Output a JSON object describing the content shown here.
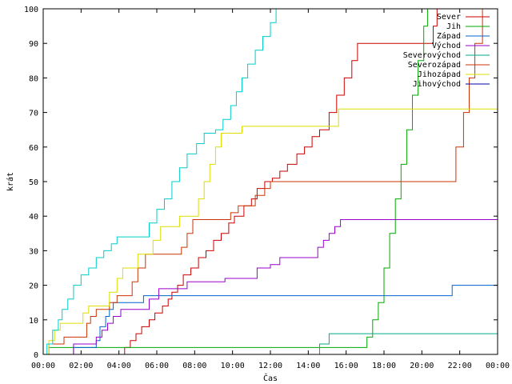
{
  "chart_data": {
    "type": "line",
    "xlabel": "Čas",
    "ylabel": "krát",
    "xlim": [
      0,
      24
    ],
    "ylim": [
      0,
      100
    ],
    "x_ticks": [
      0,
      2,
      4,
      6,
      8,
      10,
      12,
      14,
      16,
      18,
      20,
      22,
      24
    ],
    "x_tick_labels": [
      "00:00",
      "02:00",
      "04:00",
      "06:00",
      "08:00",
      "10:00",
      "12:00",
      "14:00",
      "16:00",
      "18:00",
      "20:00",
      "22:00",
      "00:00"
    ],
    "y_ticks": [
      0,
      10,
      20,
      30,
      40,
      50,
      60,
      70,
      80,
      90,
      100
    ],
    "y_tick_labels": [
      "0",
      "10",
      "20",
      "30",
      "40",
      "50",
      "60",
      "70",
      "80",
      "90",
      "100"
    ],
    "grid": false,
    "legend_position": "top-right",
    "series": [
      {
        "name": "Sever",
        "color": "#cc0000",
        "points": [
          [
            0,
            0
          ],
          [
            4.2,
            0
          ],
          [
            4.3,
            2
          ],
          [
            4.6,
            4
          ],
          [
            4.9,
            6
          ],
          [
            5.2,
            8
          ],
          [
            5.6,
            10
          ],
          [
            5.9,
            12
          ],
          [
            6.3,
            14
          ],
          [
            6.6,
            16
          ],
          [
            6.8,
            18
          ],
          [
            7.1,
            20
          ],
          [
            7.4,
            23
          ],
          [
            7.8,
            25
          ],
          [
            8.2,
            28
          ],
          [
            8.6,
            30
          ],
          [
            9.0,
            33
          ],
          [
            9.4,
            35
          ],
          [
            9.8,
            38
          ],
          [
            10.1,
            40
          ],
          [
            10.6,
            43
          ],
          [
            11.0,
            45
          ],
          [
            11.3,
            48
          ],
          [
            11.7,
            50
          ],
          [
            12.1,
            51
          ],
          [
            12.5,
            53
          ],
          [
            12.9,
            55
          ],
          [
            13.4,
            58
          ],
          [
            13.8,
            60
          ],
          [
            14.2,
            63
          ],
          [
            14.6,
            65
          ],
          [
            15.1,
            70
          ],
          [
            15.5,
            75
          ],
          [
            15.9,
            80
          ],
          [
            16.3,
            85
          ],
          [
            16.6,
            90
          ],
          [
            20.3,
            90
          ],
          [
            20.6,
            95
          ],
          [
            20.8,
            100
          ]
        ]
      },
      {
        "name": "Jih",
        "color": "#00aa00",
        "points": [
          [
            0,
            0
          ],
          [
            0.3,
            2
          ],
          [
            16.8,
            2
          ],
          [
            17.1,
            5
          ],
          [
            17.4,
            10
          ],
          [
            17.7,
            15
          ],
          [
            18.0,
            25
          ],
          [
            18.3,
            35
          ],
          [
            18.6,
            45
          ],
          [
            18.9,
            55
          ],
          [
            19.2,
            65
          ],
          [
            19.5,
            75
          ],
          [
            19.8,
            85
          ],
          [
            20.1,
            95
          ],
          [
            20.3,
            100
          ]
        ]
      },
      {
        "name": "Západ",
        "color": "#0066cc",
        "points": [
          [
            0,
            0
          ],
          [
            1.5,
            0
          ],
          [
            1.6,
            2
          ],
          [
            2.6,
            2
          ],
          [
            2.8,
            4
          ],
          [
            3.0,
            8
          ],
          [
            3.3,
            11
          ],
          [
            3.5,
            13
          ],
          [
            3.7,
            15
          ],
          [
            5.2,
            15
          ],
          [
            5.3,
            17
          ],
          [
            21.5,
            17
          ],
          [
            21.6,
            20
          ],
          [
            24,
            20
          ]
        ]
      },
      {
        "name": "Východ",
        "color": "#9900cc",
        "points": [
          [
            0,
            0
          ],
          [
            1.4,
            0
          ],
          [
            1.6,
            3
          ],
          [
            2.5,
            3
          ],
          [
            2.8,
            5
          ],
          [
            3.1,
            7
          ],
          [
            3.4,
            9
          ],
          [
            3.7,
            11
          ],
          [
            4.1,
            13
          ],
          [
            5.3,
            13
          ],
          [
            5.6,
            16
          ],
          [
            6.1,
            19
          ],
          [
            7.2,
            19
          ],
          [
            7.6,
            21
          ],
          [
            9.2,
            21
          ],
          [
            9.6,
            22
          ],
          [
            11.0,
            22
          ],
          [
            11.3,
            25
          ],
          [
            12.0,
            26
          ],
          [
            12.5,
            28
          ],
          [
            14.3,
            28
          ],
          [
            14.5,
            31
          ],
          [
            14.8,
            33
          ],
          [
            15.1,
            35
          ],
          [
            15.4,
            37
          ],
          [
            15.7,
            39
          ],
          [
            24,
            39
          ]
        ]
      },
      {
        "name": "Severovýchod",
        "color": "#00aa88",
        "points": [
          [
            0,
            0
          ],
          [
            0.2,
            0
          ],
          [
            14.5,
            0
          ],
          [
            14.6,
            3
          ],
          [
            15.0,
            3
          ],
          [
            15.1,
            6
          ],
          [
            24,
            6
          ]
        ]
      },
      {
        "name": "Severozápad",
        "color": "#cc3300",
        "points": [
          [
            0,
            0
          ],
          [
            0.3,
            3
          ],
          [
            1.0,
            3
          ],
          [
            1.1,
            5
          ],
          [
            2.0,
            5
          ],
          [
            2.3,
            9
          ],
          [
            2.5,
            11
          ],
          [
            2.8,
            13
          ],
          [
            3.2,
            13
          ],
          [
            3.5,
            15
          ],
          [
            3.9,
            17
          ],
          [
            4.3,
            17
          ],
          [
            4.7,
            21
          ],
          [
            5.0,
            25
          ],
          [
            5.4,
            29
          ],
          [
            6.9,
            29
          ],
          [
            7.3,
            31
          ],
          [
            7.6,
            35
          ],
          [
            7.9,
            39
          ],
          [
            9.5,
            39
          ],
          [
            9.9,
            41
          ],
          [
            10.3,
            43
          ],
          [
            10.9,
            43
          ],
          [
            11.2,
            46
          ],
          [
            11.7,
            48
          ],
          [
            12.0,
            50
          ],
          [
            21.5,
            50
          ],
          [
            21.8,
            60
          ],
          [
            22.2,
            70
          ],
          [
            22.5,
            80
          ],
          [
            22.8,
            90
          ],
          [
            23.2,
            100
          ]
        ]
      },
      {
        "name": "Jihozápad",
        "color": "#dddd00",
        "points": [
          [
            0,
            0
          ],
          [
            0.3,
            4
          ],
          [
            0.6,
            7
          ],
          [
            0.9,
            9
          ],
          [
            1.8,
            9
          ],
          [
            2.1,
            12
          ],
          [
            2.4,
            14
          ],
          [
            3.2,
            14
          ],
          [
            3.5,
            18
          ],
          [
            3.9,
            22
          ],
          [
            4.2,
            25
          ],
          [
            4.7,
            25
          ],
          [
            5.0,
            29
          ],
          [
            5.4,
            29
          ],
          [
            5.8,
            33
          ],
          [
            6.2,
            37
          ],
          [
            6.9,
            37
          ],
          [
            7.2,
            40
          ],
          [
            8.0,
            40
          ],
          [
            8.2,
            45
          ],
          [
            8.5,
            50
          ],
          [
            8.8,
            55
          ],
          [
            9.1,
            60
          ],
          [
            9.4,
            64
          ],
          [
            10.2,
            64
          ],
          [
            10.5,
            66
          ],
          [
            15.3,
            66
          ],
          [
            15.6,
            71
          ],
          [
            24,
            71
          ]
        ]
      },
      {
        "name": "Jihovýchod",
        "color": "#0000aa",
        "points": [
          [
            0,
            0
          ],
          [
            24,
            0
          ]
        ]
      },
      {
        "name": "",
        "color": "#00cccc",
        "points": [
          [
            0,
            0
          ],
          [
            0.2,
            3
          ],
          [
            0.5,
            7
          ],
          [
            0.8,
            10
          ],
          [
            1.0,
            13
          ],
          [
            1.3,
            16
          ],
          [
            1.6,
            20
          ],
          [
            2.0,
            23
          ],
          [
            2.4,
            25
          ],
          [
            2.8,
            28
          ],
          [
            3.2,
            30
          ],
          [
            3.6,
            32
          ],
          [
            3.9,
            34
          ],
          [
            5.3,
            34
          ],
          [
            5.6,
            38
          ],
          [
            6.0,
            42
          ],
          [
            6.4,
            45
          ],
          [
            6.8,
            50
          ],
          [
            7.2,
            54
          ],
          [
            7.6,
            58
          ],
          [
            8.1,
            61
          ],
          [
            8.5,
            64
          ],
          [
            9.1,
            65
          ],
          [
            9.5,
            68
          ],
          [
            9.9,
            72
          ],
          [
            10.2,
            76
          ],
          [
            10.5,
            80
          ],
          [
            10.8,
            84
          ],
          [
            11.2,
            88
          ],
          [
            11.6,
            92
          ],
          [
            12.0,
            96
          ],
          [
            12.3,
            100
          ]
        ]
      }
    ]
  }
}
